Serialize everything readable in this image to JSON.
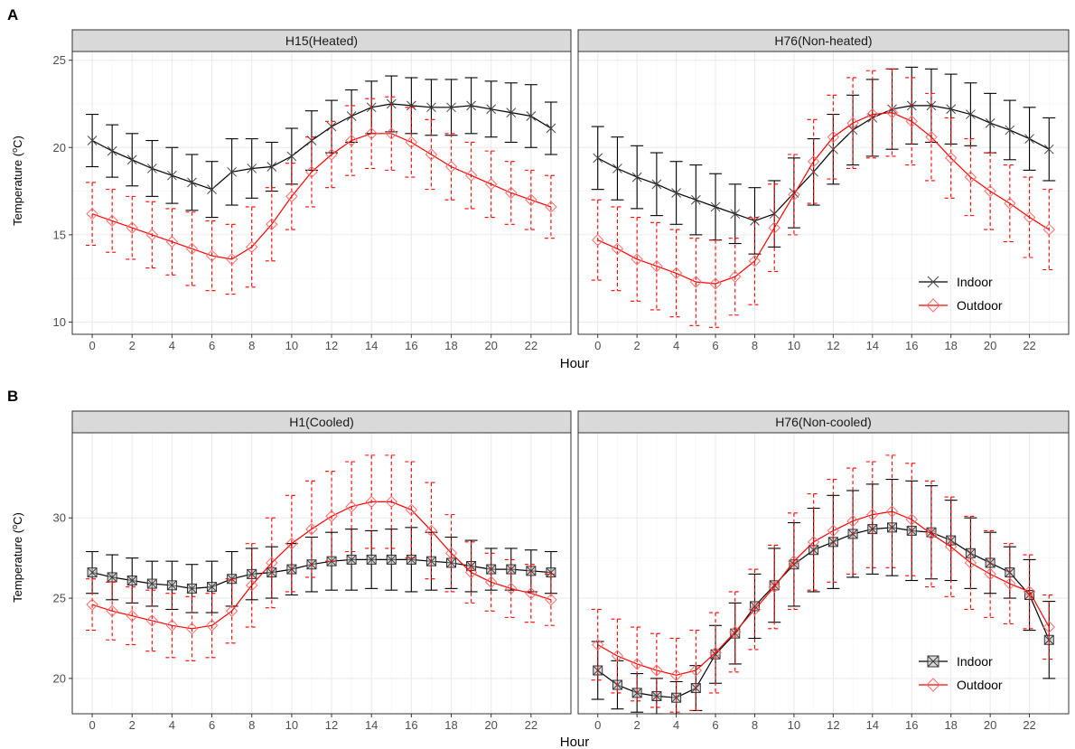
{
  "panel_letters": [
    "A",
    "B"
  ],
  "colors": {
    "indoor": "#000000",
    "outdoor": "#ff0000",
    "grid": "#ebebeb",
    "strip": "#d9d9d9",
    "border": "#333333"
  },
  "legend": {
    "indoor": "Indoor",
    "outdoor": "Outdoor"
  },
  "chart_data": [
    {
      "type": "line",
      "group": "A",
      "title": "H15(Heated)",
      "xlabel": "Hour",
      "ylabel": "Temperature (",
      "ylabel_sup": "o",
      "ylabel_end": "C)",
      "xlim": [
        -1,
        24
      ],
      "ylim": [
        9.3,
        25.5
      ],
      "xticks": [
        0,
        2,
        4,
        6,
        8,
        10,
        12,
        14,
        16,
        18,
        20,
        22
      ],
      "yticks": [
        10,
        15,
        20,
        25
      ],
      "x": [
        0,
        1,
        2,
        3,
        4,
        5,
        6,
        7,
        8,
        9,
        10,
        11,
        12,
        13,
        14,
        15,
        16,
        17,
        18,
        19,
        20,
        21,
        22,
        23
      ],
      "series": [
        {
          "name": "Indoor",
          "marker": "x",
          "line": "solid",
          "values": [
            20.4,
            19.8,
            19.3,
            18.8,
            18.4,
            18.0,
            17.6,
            18.6,
            18.8,
            18.9,
            19.5,
            20.4,
            21.2,
            21.8,
            22.3,
            22.5,
            22.4,
            22.3,
            22.3,
            22.4,
            22.2,
            22.0,
            21.8,
            21.1
          ],
          "err": [
            1.5,
            1.5,
            1.5,
            1.6,
            1.6,
            1.6,
            1.6,
            1.9,
            1.7,
            1.4,
            1.6,
            1.7,
            1.5,
            1.5,
            1.5,
            1.6,
            1.6,
            1.6,
            1.6,
            1.6,
            1.6,
            1.7,
            1.8,
            1.5
          ]
        },
        {
          "name": "Outdoor",
          "marker": "diamond",
          "line": "dashed",
          "values": [
            16.2,
            15.8,
            15.4,
            15.0,
            14.6,
            14.2,
            13.8,
            13.6,
            14.3,
            15.6,
            17.2,
            18.6,
            19.6,
            20.4,
            20.8,
            20.8,
            20.3,
            19.6,
            18.9,
            18.4,
            17.9,
            17.4,
            17.0,
            16.6
          ],
          "err": [
            1.8,
            1.8,
            1.8,
            1.9,
            1.9,
            2.1,
            2.0,
            2.0,
            2.3,
            2.1,
            1.9,
            2.0,
            1.9,
            2.0,
            2.0,
            2.1,
            2.0,
            2.0,
            1.9,
            1.9,
            1.9,
            1.8,
            1.7,
            1.8
          ]
        }
      ]
    },
    {
      "type": "line",
      "group": "A",
      "title": "H76(Non-heated)",
      "xlabel": "Hour",
      "xlim": [
        -1,
        24
      ],
      "ylim": [
        9.3,
        25.5
      ],
      "xticks": [
        0,
        2,
        4,
        6,
        8,
        10,
        12,
        14,
        16,
        18,
        20,
        22
      ],
      "yticks": [
        10,
        15,
        20,
        25
      ],
      "x": [
        0,
        1,
        2,
        3,
        4,
        5,
        6,
        7,
        8,
        9,
        10,
        11,
        12,
        13,
        14,
        15,
        16,
        17,
        18,
        19,
        20,
        21,
        22,
        23
      ],
      "legend_position": "bottom-right",
      "series": [
        {
          "name": "Indoor",
          "marker": "x",
          "line": "solid",
          "values": [
            19.4,
            18.8,
            18.3,
            17.9,
            17.4,
            17.0,
            16.6,
            16.2,
            15.8,
            16.2,
            17.4,
            18.6,
            19.9,
            21.0,
            21.7,
            22.2,
            22.4,
            22.4,
            22.2,
            21.9,
            21.4,
            21.0,
            20.5,
            19.9
          ],
          "err": [
            1.8,
            1.8,
            1.8,
            1.8,
            1.8,
            2.0,
            1.9,
            1.7,
            1.9,
            1.9,
            2.0,
            1.9,
            2.0,
            2.0,
            2.2,
            2.3,
            2.2,
            2.1,
            2.0,
            1.8,
            1.7,
            1.7,
            1.8,
            1.8
          ]
        },
        {
          "name": "Outdoor",
          "marker": "diamond",
          "line": "dashed",
          "values": [
            14.7,
            14.2,
            13.6,
            13.2,
            12.8,
            12.3,
            12.2,
            12.6,
            13.5,
            15.4,
            17.3,
            19.2,
            20.6,
            21.4,
            21.9,
            22.0,
            21.5,
            20.6,
            19.4,
            18.3,
            17.5,
            16.8,
            16.0,
            15.3
          ],
          "err": [
            2.3,
            2.4,
            2.4,
            2.5,
            2.5,
            2.5,
            2.5,
            2.2,
            2.5,
            2.5,
            2.3,
            2.4,
            2.4,
            2.6,
            2.5,
            2.5,
            2.5,
            2.5,
            2.3,
            2.2,
            2.2,
            2.2,
            2.3,
            2.3
          ]
        }
      ]
    },
    {
      "type": "line",
      "group": "B",
      "title": "H1(Cooled)",
      "xlabel": "Hour",
      "ylabel": "Temperature (",
      "ylabel_sup": "o",
      "ylabel_end": "C)",
      "xlim": [
        -1,
        24
      ],
      "ylim": [
        17.8,
        35.3
      ],
      "xticks": [
        0,
        2,
        4,
        6,
        8,
        10,
        12,
        14,
        16,
        18,
        20,
        22
      ],
      "yticks": [
        20,
        25,
        30
      ],
      "x": [
        0,
        1,
        2,
        3,
        4,
        5,
        6,
        7,
        8,
        9,
        10,
        11,
        12,
        13,
        14,
        15,
        16,
        17,
        18,
        19,
        20,
        21,
        22,
        23
      ],
      "series": [
        {
          "name": "Indoor",
          "marker": "box-x",
          "line": "solid",
          "values": [
            26.6,
            26.3,
            26.1,
            25.9,
            25.8,
            25.6,
            25.7,
            26.2,
            26.5,
            26.6,
            26.8,
            27.1,
            27.3,
            27.4,
            27.4,
            27.4,
            27.4,
            27.3,
            27.2,
            27.0,
            26.8,
            26.8,
            26.7,
            26.6
          ],
          "err": [
            1.3,
            1.4,
            1.4,
            1.4,
            1.5,
            1.5,
            1.6,
            1.7,
            1.6,
            1.6,
            1.6,
            1.7,
            1.8,
            1.9,
            1.8,
            1.9,
            2.0,
            1.8,
            1.6,
            1.6,
            1.3,
            1.3,
            1.3,
            1.3
          ]
        },
        {
          "name": "Outdoor",
          "marker": "diamond",
          "line": "dashed",
          "values": [
            24.6,
            24.2,
            23.9,
            23.6,
            23.3,
            23.1,
            23.3,
            24.2,
            25.8,
            27.2,
            28.4,
            29.3,
            30.1,
            30.7,
            31.0,
            31.0,
            30.5,
            29.2,
            27.8,
            26.6,
            26.0,
            25.6,
            25.3,
            24.9
          ],
          "err": [
            1.6,
            1.8,
            1.8,
            1.9,
            2.0,
            2.0,
            2.0,
            2.0,
            2.6,
            2.8,
            3.0,
            3.0,
            2.8,
            2.8,
            2.9,
            2.9,
            3.0,
            3.0,
            2.4,
            1.9,
            1.8,
            1.8,
            1.8,
            1.6
          ]
        }
      ]
    },
    {
      "type": "line",
      "group": "B",
      "title": "H76(Non-cooled)",
      "xlabel": "Hour",
      "xlim": [
        -1,
        24
      ],
      "ylim": [
        17.8,
        35.3
      ],
      "xticks": [
        0,
        2,
        4,
        6,
        8,
        10,
        12,
        14,
        16,
        18,
        20,
        22
      ],
      "yticks": [
        20,
        25,
        30
      ],
      "x": [
        0,
        1,
        2,
        3,
        4,
        5,
        6,
        7,
        8,
        9,
        10,
        11,
        12,
        13,
        14,
        15,
        16,
        17,
        18,
        19,
        20,
        21,
        22,
        23
      ],
      "legend_position": "bottom-right",
      "series": [
        {
          "name": "Indoor",
          "marker": "box-x",
          "line": "solid",
          "values": [
            20.5,
            19.6,
            19.1,
            18.9,
            18.8,
            19.4,
            21.5,
            22.8,
            24.5,
            25.8,
            27.1,
            28.0,
            28.5,
            29.0,
            29.3,
            29.4,
            29.2,
            29.1,
            28.6,
            27.8,
            27.2,
            26.6,
            25.2,
            22.4
          ],
          "err": [
            1.8,
            1.5,
            1.2,
            1.1,
            1.0,
            1.4,
            1.8,
            1.9,
            2.0,
            2.3,
            2.6,
            2.6,
            2.9,
            2.7,
            2.8,
            3.0,
            3.1,
            2.9,
            2.5,
            2.2,
            1.9,
            1.6,
            2.2,
            2.4
          ]
        },
        {
          "name": "Outdoor",
          "marker": "diamond",
          "line": "dashed",
          "values": [
            22.1,
            21.4,
            20.9,
            20.5,
            20.2,
            20.5,
            21.6,
            22.9,
            24.3,
            25.7,
            27.3,
            28.5,
            29.2,
            29.8,
            30.2,
            30.4,
            29.9,
            29.0,
            28.2,
            27.2,
            26.5,
            25.9,
            25.4,
            23.2
          ],
          "err": [
            2.2,
            2.3,
            2.3,
            2.3,
            2.3,
            2.5,
            2.5,
            2.5,
            2.5,
            2.6,
            3.0,
            3.0,
            3.2,
            3.3,
            3.3,
            3.5,
            3.5,
            3.3,
            3.1,
            2.9,
            2.7,
            2.5,
            2.3,
            2.0
          ]
        }
      ]
    }
  ]
}
